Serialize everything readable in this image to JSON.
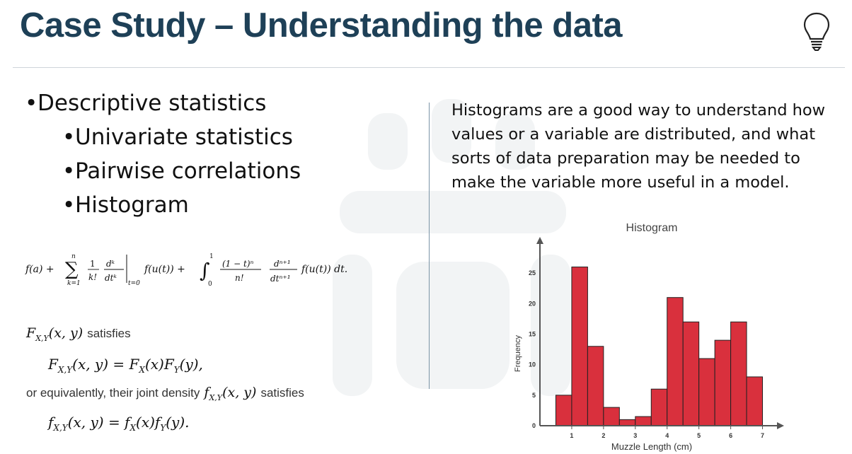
{
  "slide": {
    "title": "Case Study – Understanding the data",
    "icon": "lightbulb-icon",
    "colors": {
      "title": "#1e4057",
      "bar": "#d9303d",
      "divider": "#7b94a6"
    }
  },
  "bullets": [
    {
      "text": "Descriptive statistics",
      "level": 1
    },
    {
      "text": "Univariate statistics",
      "level": 2
    },
    {
      "text": "Pairwise correlations",
      "level": 2
    },
    {
      "text": "Histogram",
      "level": 2
    }
  ],
  "formulas": {
    "taylor": "f(a) + Σ (k=1..n) 1/k! d^k/dt^k |t=0 f(u(t)) + ∫0^1 (1 − t)^n / n! d^(n+1)/dt^(n+1) f(u(t)) dt.",
    "taylor_parts": {
      "fa": "f(a) +",
      "sum": "∑",
      "sum_top": "n",
      "sum_bottom": "k=1",
      "frac1_num": "1",
      "frac1_den": "k!",
      "frac2_num": "dᵏ",
      "frac2_den": "dtᵏ",
      "eval_sub": "t=0",
      "mid": "f(u(t)) +",
      "integral": "∫",
      "int_top": "1",
      "int_bottom": "0",
      "frac3_num": "(1 − t)ⁿ",
      "frac3_den": "n!",
      "frac4_num": "dⁿ⁺¹",
      "frac4_den": "dtⁿ⁺¹",
      "tail": "f(u(t)) dt."
    },
    "line1_math": "F",
    "line1_sub": "X,Y",
    "line1_args": "(x, y)",
    "line1_text": "satisfies",
    "line2_lhs": "F",
    "line2_lhs_sub": "X,Y",
    "line2_body": "(x, y) = F",
    "line2_sub_x": "X",
    "line2_mid": "(x)F",
    "line2_sub_y": "Y",
    "line2_end": "(y),",
    "line3_text_a": "or equivalently, their joint density",
    "line3_math": "f",
    "line3_sub": "X,Y",
    "line3_args": "(x, y)",
    "line3_text_b": "satisfies",
    "line4_lhs": "f",
    "line4_lhs_sub": "X,Y",
    "line4_body": "(x, y) = f",
    "line4_sub_x": "X",
    "line4_mid": "(x)f",
    "line4_sub_y": "Y",
    "line4_end": "(y)."
  },
  "description": [
    "Histograms are a good way to understand how",
    "values or a variable are distributed, and what",
    "sorts of data preparation may be needed to",
    "make the variable more useful in a model."
  ],
  "chart_data": {
    "type": "bar",
    "title": "Histogram",
    "xlabel": "Muzzle Length (cm)",
    "ylabel": "Frequency",
    "bins": [
      [
        0.5,
        1.0
      ],
      [
        1.0,
        1.5
      ],
      [
        1.5,
        2.0
      ],
      [
        2.0,
        2.5
      ],
      [
        2.5,
        3.0
      ],
      [
        3.0,
        3.5
      ],
      [
        3.5,
        4.0
      ],
      [
        4.0,
        4.5
      ],
      [
        4.5,
        5.0
      ],
      [
        5.0,
        5.5
      ],
      [
        5.5,
        6.0
      ],
      [
        6.0,
        6.5
      ],
      [
        6.5,
        7.0
      ]
    ],
    "values": [
      5,
      26,
      13,
      3,
      1,
      1.5,
      6,
      21,
      17,
      11,
      14,
      17,
      8
    ],
    "xticks": [
      1,
      2,
      3,
      4,
      5,
      6,
      7
    ],
    "yticks": [
      0,
      5,
      10,
      15,
      20,
      25
    ],
    "xlim": [
      0,
      7.5
    ],
    "ylim": [
      0,
      30
    ],
    "grid": false,
    "color": "#d9303d"
  }
}
